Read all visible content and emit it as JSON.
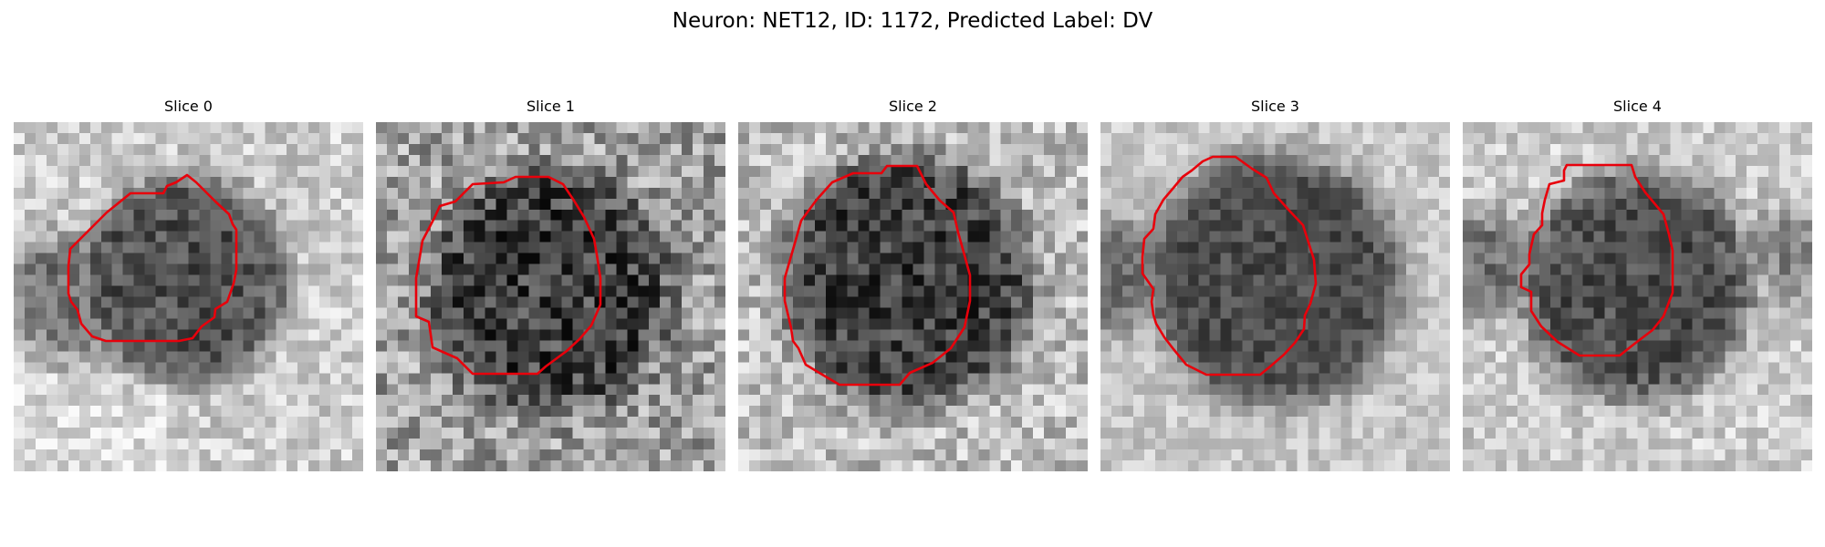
{
  "figure": {
    "title": "Neuron: NET12, ID: 1172, Predicted Label: DV",
    "contour_color": "#e8000b"
  },
  "panels": [
    {
      "title": "Slice 0"
    },
    {
      "title": "Slice 1"
    },
    {
      "title": "Slice 2"
    },
    {
      "title": "Slice 3"
    },
    {
      "title": "Slice 4"
    }
  ]
}
